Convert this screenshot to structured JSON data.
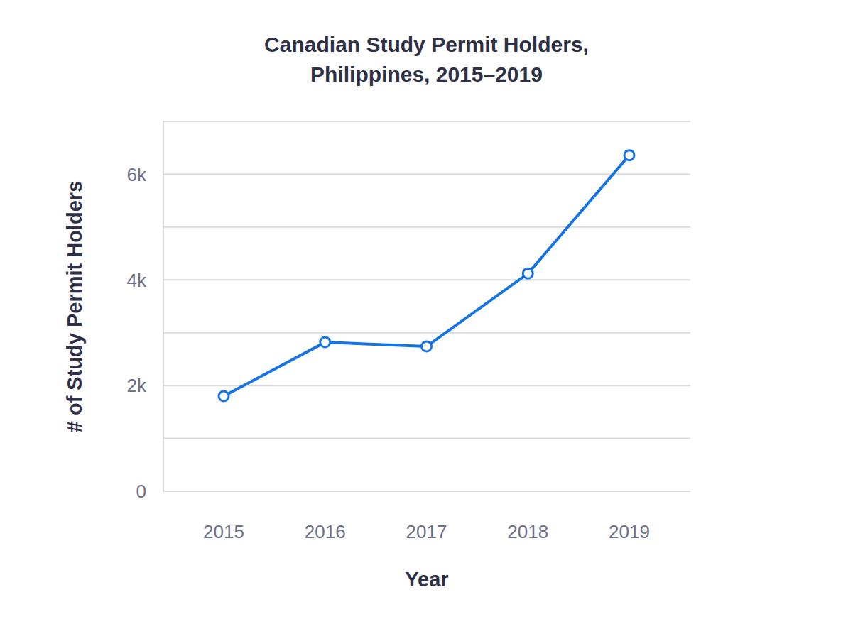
{
  "chart_data": {
    "type": "line",
    "title": "Canadian Study Permit Holders, Philippines, 2015–2019",
    "x_label": "Year",
    "y_label": "# of Study Permit Holders",
    "categories": [
      "2015",
      "2016",
      "2017",
      "2018",
      "2019"
    ],
    "values": [
      1800,
      2820,
      2740,
      4120,
      6360
    ],
    "color": "#1473e6",
    "marker": "circle",
    "ylim": [
      0,
      7000
    ],
    "yticks": [
      0,
      {
        "value": 2000,
        "label": "2k"
      },
      {
        "value": 4000,
        "label": "4k"
      },
      {
        "value": 6000,
        "label": "6k"
      }
    ],
    "grid": true
  }
}
